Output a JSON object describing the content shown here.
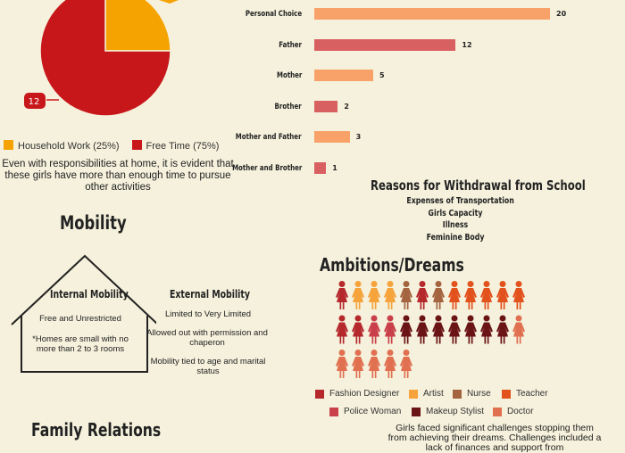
{
  "pie_chart": {
    "slices": [
      {
        "label": "Household Work (25%)",
        "value": 25,
        "color": "#f5a300"
      },
      {
        "label": "Free Time (75%)",
        "value": 75,
        "color": "#c8171b"
      }
    ],
    "callout_value": "12",
    "caption": "Even with responsibilities at home, it is evident that these girls have more than enough time to pursue other activities"
  },
  "chart_data": {
    "type": "bar",
    "orientation": "horizontal",
    "categories": [
      "Personal Choice",
      "Father",
      "Mother",
      "Brother",
      "Mother and Father",
      "Mother and Brother"
    ],
    "values": [
      20,
      12,
      5,
      2,
      3,
      1
    ],
    "colors": [
      "#f8a26a",
      "#d86060",
      "#f8a26a",
      "#d86060",
      "#f8a26a",
      "#d86060"
    ],
    "xlim": [
      0,
      20
    ]
  },
  "withdrawal": {
    "title": "Reasons for Withdrawal from School",
    "items": [
      "Expenses of Transportation",
      "Girls Capacity",
      "Illness",
      "Feminine Body"
    ]
  },
  "mobility": {
    "title": "Mobility",
    "internal": {
      "title": "Internal Mobility",
      "line1": "Free and Unrestricted",
      "line2": "*Homes are small with no more than 2 to 3 rooms"
    },
    "external": {
      "title": "External Mobility",
      "line1": "Limited to Very Limited",
      "line2": "Allowed out with permission and chaperon",
      "line3": "Mobility tied to age and marital status"
    }
  },
  "ambitions": {
    "title": "Ambitions/Dreams",
    "figure_rows": [
      [
        "#b5292c",
        "#f5a33a",
        "#f5a33a",
        "#f5a33a",
        "#a4643f",
        "#b5292c",
        "#a4643f",
        "#e2521d",
        "#e2521d",
        "#e2521d",
        "#e2521d",
        "#e2521d"
      ],
      [
        "#b5292c",
        "#b5292c",
        "#c9404a",
        "#c9404a",
        "#6a1416",
        "#6a1416",
        "#6a1416",
        "#6a1416",
        "#6a1416",
        "#6a1416",
        "#6a1416",
        "#e07050"
      ],
      [
        "#e07050",
        "#e07050",
        "#e07050",
        "#e07050",
        "#e07050"
      ]
    ],
    "legend": [
      {
        "label": "Fashion Designer",
        "color": "#b5292c"
      },
      {
        "label": "Artist",
        "color": "#f5a33a"
      },
      {
        "label": "Nurse",
        "color": "#a4643f"
      },
      {
        "label": "Teacher",
        "color": "#e2521d"
      },
      {
        "label": "Police Woman",
        "color": "#c9404a"
      },
      {
        "label": "Makeup Stylist",
        "color": "#6a1416"
      },
      {
        "label": "Doctor",
        "color": "#e07050"
      }
    ],
    "caption": "Girls faced significant challenges stopping them from achieving their dreams. Challenges included a lack of finances and support from"
  },
  "family": {
    "title": "Family Relations"
  }
}
